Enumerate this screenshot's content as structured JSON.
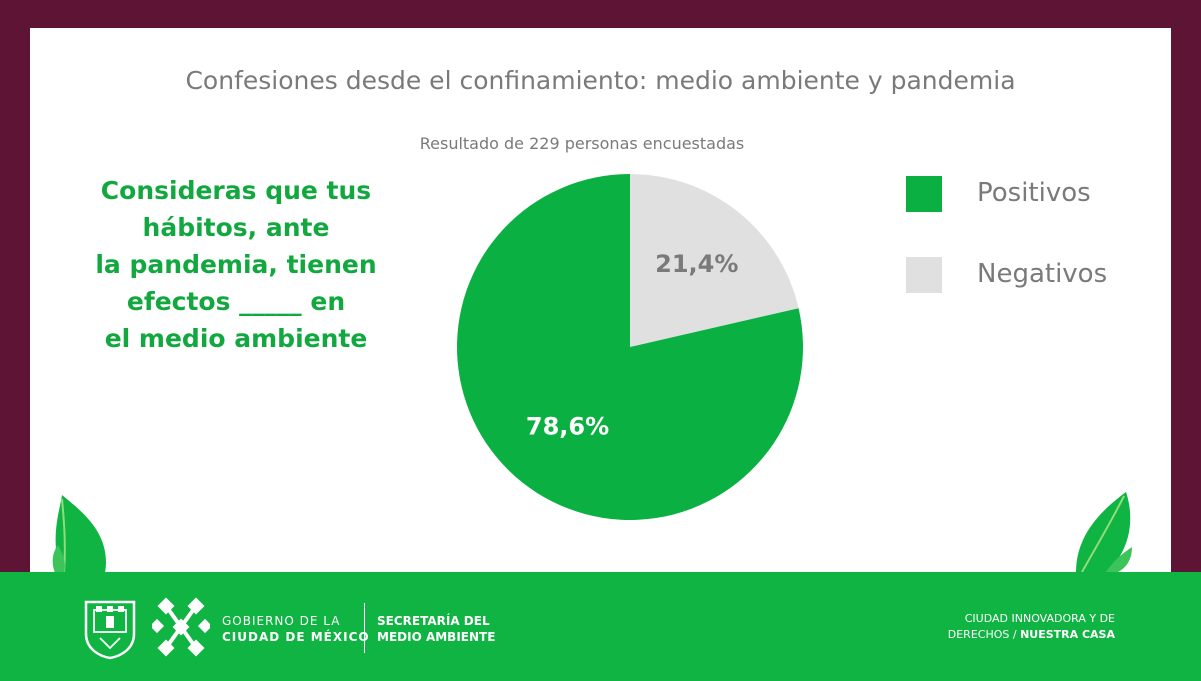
{
  "header": {
    "title": "Confesiones desde el confinamiento: medio ambiente y pandemia",
    "subtitle": "Resultado de 229 personas encuestadas"
  },
  "question": {
    "lines": [
      "Consideras que tus",
      "hábitos, ante",
      "la pandemia, tienen",
      "efectos _____ en",
      "el medio ambiente"
    ]
  },
  "chart_data": {
    "type": "pie",
    "title": "",
    "series": [
      {
        "name": "Positivos",
        "value": 78.6,
        "label": "78,6%",
        "color": "#0bb042"
      },
      {
        "name": "Negativos",
        "value": 21.4,
        "label": "21,4%",
        "color": "#e0e0e0"
      }
    ],
    "legend_position": "right"
  },
  "legend": [
    {
      "label": "Positivos",
      "color": "#0bb042"
    },
    {
      "label": "Negativos",
      "color": "#e0e0e0"
    }
  ],
  "footer": {
    "gov_line1": "GOBIERNO DE LA",
    "gov_line2": "CIUDAD DE MÉXICO",
    "sec_line1": "SECRETARÍA DEL",
    "sec_line2": "MEDIO AMBIENTE",
    "tag_line1": "CIUDAD INNOVADORA Y DE",
    "tag_line2_a": "DERECHOS / ",
    "tag_line2_b": "NUESTRA CASA"
  },
  "colors": {
    "brand_green": "#0fb442",
    "frame": "#5e1434",
    "text_gray": "#7a7a7a"
  }
}
